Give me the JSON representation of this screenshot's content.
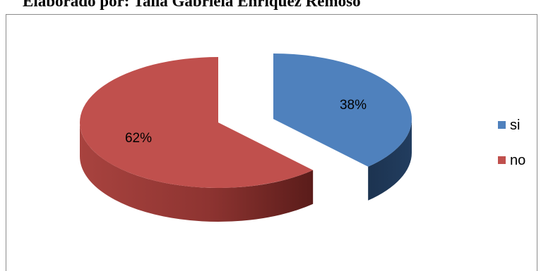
{
  "caption": "Elaborado por: Talia Gabriela Enriquez Remoso",
  "chart_data": {
    "type": "pie",
    "style": "3d-exploded",
    "legend_position": "right",
    "slices": [
      {
        "name": "si",
        "value": 38,
        "label": "38%",
        "color": "#4f81bd",
        "side_color": "#1f3552"
      },
      {
        "name": "no",
        "value": 62,
        "label": "62%",
        "color": "#c0504d",
        "side_color": "#6e2422"
      }
    ]
  }
}
